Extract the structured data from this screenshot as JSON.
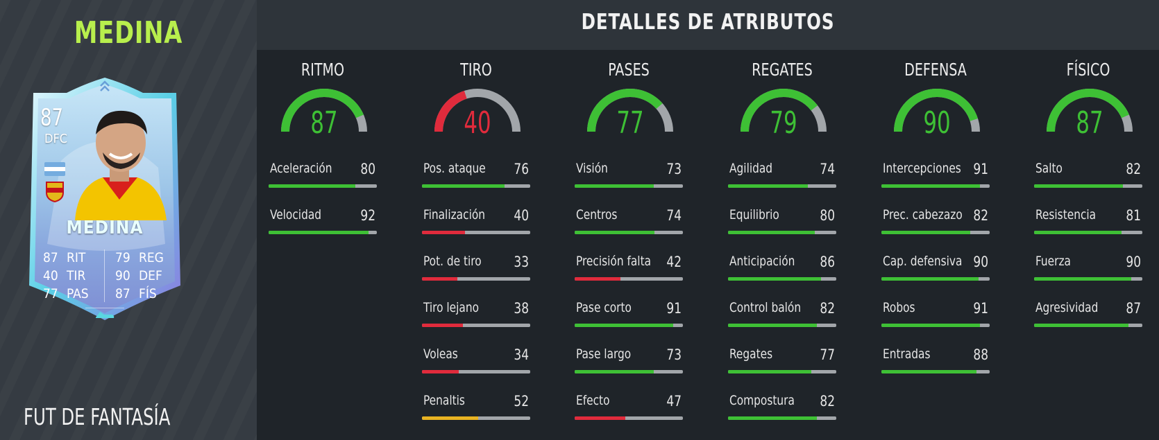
{
  "player": {
    "name": "MEDINA",
    "promo": "FUT DE FANTASÍA",
    "card": {
      "rating": "87",
      "position": "DFC",
      "name": "MEDINA",
      "stats": [
        {
          "value": "87",
          "label": "RIT"
        },
        {
          "value": "40",
          "label": "TIR"
        },
        {
          "value": "77",
          "label": "PAS"
        },
        {
          "value": "79",
          "label": "REG"
        },
        {
          "value": "90",
          "label": "DEF"
        },
        {
          "value": "87",
          "label": "FÍS"
        }
      ]
    }
  },
  "header": {
    "title": "DETALLES DE ATRIBUTOS"
  },
  "colors": {
    "green": "#3ec035",
    "red": "#e02b3c",
    "yellow": "#e8b322",
    "gauge_track": "#a2a6aa",
    "name_accent": "#b8ef4d"
  },
  "groups": [
    {
      "title": "RITMO",
      "value": 87,
      "attributes": [
        {
          "name": "Aceleración",
          "value": 80
        },
        {
          "name": "Velocidad",
          "value": 92
        }
      ]
    },
    {
      "title": "TIRO",
      "value": 40,
      "attributes": [
        {
          "name": "Pos. ataque",
          "value": 76
        },
        {
          "name": "Finalización",
          "value": 40
        },
        {
          "name": "Pot. de tiro",
          "value": 33
        },
        {
          "name": "Tiro lejano",
          "value": 38
        },
        {
          "name": "Voleas",
          "value": 34
        },
        {
          "name": "Penaltis",
          "value": 52
        }
      ]
    },
    {
      "title": "PASES",
      "value": 77,
      "attributes": [
        {
          "name": "Visión",
          "value": 73
        },
        {
          "name": "Centros",
          "value": 74
        },
        {
          "name": "Precisión falta",
          "value": 42
        },
        {
          "name": "Pase corto",
          "value": 91
        },
        {
          "name": "Pase largo",
          "value": 73
        },
        {
          "name": "Efecto",
          "value": 47
        }
      ]
    },
    {
      "title": "REGATES",
      "value": 79,
      "attributes": [
        {
          "name": "Agilidad",
          "value": 74
        },
        {
          "name": "Equilibrio",
          "value": 80
        },
        {
          "name": "Anticipación",
          "value": 86
        },
        {
          "name": "Control balón",
          "value": 82
        },
        {
          "name": "Regates",
          "value": 77
        },
        {
          "name": "Compostura",
          "value": 82
        }
      ]
    },
    {
      "title": "DEFENSA",
      "value": 90,
      "attributes": [
        {
          "name": "Intercepciones",
          "value": 91
        },
        {
          "name": "Prec. cabezazo",
          "value": 82
        },
        {
          "name": "Cap. defensiva",
          "value": 90
        },
        {
          "name": "Robos",
          "value": 91
        },
        {
          "name": "Entradas",
          "value": 88
        }
      ]
    },
    {
      "title": "FÍSICO",
      "value": 87,
      "attributes": [
        {
          "name": "Salto",
          "value": 82
        },
        {
          "name": "Resistencia",
          "value": 81
        },
        {
          "name": "Fuerza",
          "value": 90
        },
        {
          "name": "Agresividad",
          "value": 87
        }
      ]
    }
  ]
}
